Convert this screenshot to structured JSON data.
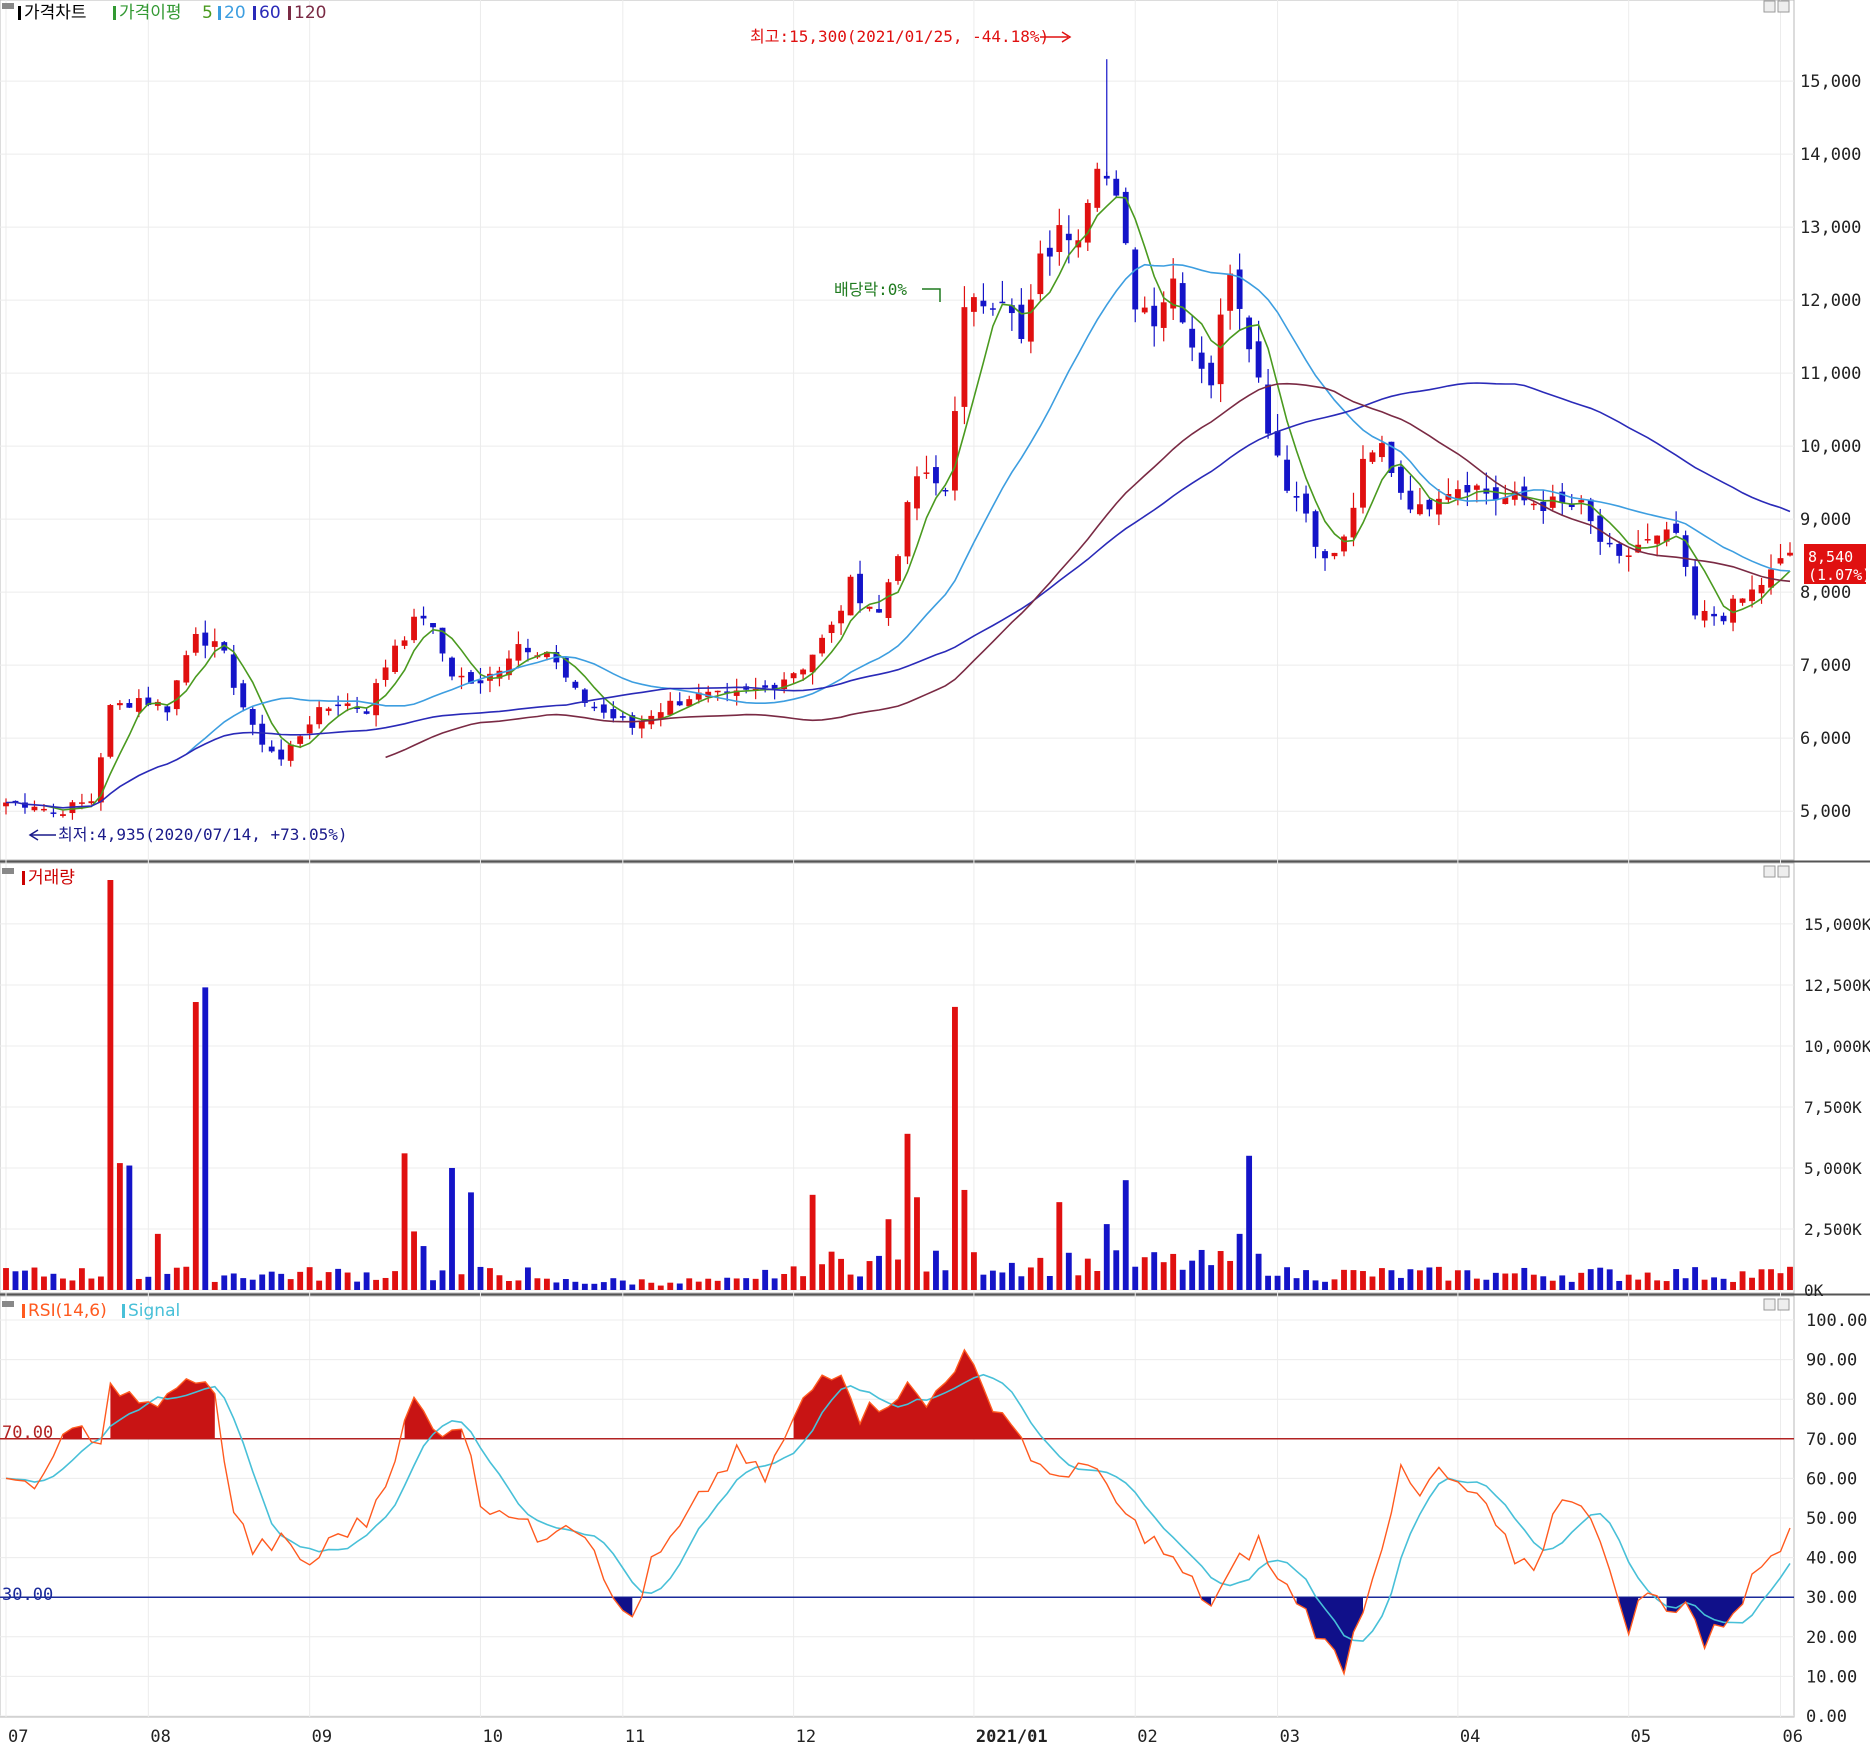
{
  "chart_data": [
    {
      "type": "candlestick",
      "panel": "price",
      "legend": [
        {
          "label": "가격차트",
          "color": "#000000"
        },
        {
          "label": "가격이평",
          "color": "#339933"
        },
        {
          "label": "5",
          "color": "#4a9a1f"
        },
        {
          "label": "20",
          "color": "#3d9ee0"
        },
        {
          "label": "60",
          "color": "#2a2ab8"
        },
        {
          "label": "120",
          "color": "#7a2a44"
        }
      ],
      "ylim": [
        4400,
        15700
      ],
      "y_ticks": [
        "15,000",
        "14,000",
        "13,000",
        "12,000",
        "11,000",
        "10,000",
        "9,000",
        "8,000",
        "7,000",
        "6,000",
        "5,000"
      ],
      "y_tick_values": [
        15000,
        14000,
        13000,
        12000,
        11000,
        10000,
        9000,
        8000,
        7000,
        6000,
        5000
      ],
      "last_price_label": "8,540",
      "last_change_label": "(1.07%)",
      "last_price": 8540,
      "annotations": {
        "high": "최고:15,300(2021/01/25, -44.18%)",
        "low": "최저:4,935(2020/07/14, +73.05%)",
        "dividend": "배당락:0%"
      },
      "high_value": 15300,
      "low_value": 4935,
      "anchors": [
        {
          "day": 0,
          "close": 5120
        },
        {
          "day": 3,
          "close": 5100
        },
        {
          "day": 5,
          "close": 4980
        },
        {
          "day": 9,
          "close": 5150
        },
        {
          "day": 11,
          "close": 6400
        },
        {
          "day": 14,
          "close": 6550
        },
        {
          "day": 17,
          "close": 6420
        },
        {
          "day": 20,
          "close": 7500
        },
        {
          "day": 23,
          "close": 7100
        },
        {
          "day": 26,
          "close": 6100
        },
        {
          "day": 29,
          "close": 5700
        },
        {
          "day": 32,
          "close": 6250
        },
        {
          "day": 35,
          "close": 6500
        },
        {
          "day": 38,
          "close": 6400
        },
        {
          "day": 41,
          "close": 7300
        },
        {
          "day": 44,
          "close": 7700
        },
        {
          "day": 47,
          "close": 6900
        },
        {
          "day": 50,
          "close": 6700
        },
        {
          "day": 54,
          "close": 7300
        },
        {
          "day": 57,
          "close": 7200
        },
        {
          "day": 60,
          "close": 6600
        },
        {
          "day": 63,
          "close": 6350
        },
        {
          "day": 66,
          "close": 6150
        },
        {
          "day": 68,
          "close": 6350
        },
        {
          "day": 72,
          "close": 6580
        },
        {
          "day": 76,
          "close": 6550
        },
        {
          "day": 80,
          "close": 6680
        },
        {
          "day": 84,
          "close": 7000
        },
        {
          "day": 87,
          "close": 7500
        },
        {
          "day": 89,
          "close": 8100
        },
        {
          "day": 92,
          "close": 7700
        },
        {
          "day": 94,
          "close": 8600
        },
        {
          "day": 96,
          "close": 9600
        },
        {
          "day": 99,
          "close": 9400
        },
        {
          "day": 101,
          "close": 11800
        },
        {
          "day": 103,
          "close": 12000
        },
        {
          "day": 105,
          "close": 12100
        },
        {
          "day": 107,
          "close": 11400
        },
        {
          "day": 109,
          "close": 12500
        },
        {
          "day": 111,
          "close": 12900
        },
        {
          "day": 113,
          "close": 13000
        },
        {
          "day": 115,
          "close": 14000
        },
        {
          "day": 117,
          "close": 13300
        },
        {
          "day": 119,
          "close": 12000
        },
        {
          "day": 121,
          "close": 11800
        },
        {
          "day": 123,
          "close": 12300
        },
        {
          "day": 125,
          "close": 11400
        },
        {
          "day": 127,
          "close": 10900
        },
        {
          "day": 129,
          "close": 12500
        },
        {
          "day": 131,
          "close": 11500
        },
        {
          "day": 133,
          "close": 10300
        },
        {
          "day": 135,
          "close": 9500
        },
        {
          "day": 137,
          "close": 9100
        },
        {
          "day": 139,
          "close": 8400
        },
        {
          "day": 141,
          "close": 8700
        },
        {
          "day": 143,
          "close": 9700
        },
        {
          "day": 145,
          "close": 10000
        },
        {
          "day": 147,
          "close": 9400
        },
        {
          "day": 149,
          "close": 9100
        },
        {
          "day": 151,
          "close": 9400
        },
        {
          "day": 154,
          "close": 9500
        },
        {
          "day": 157,
          "close": 9300
        },
        {
          "day": 160,
          "close": 9250
        },
        {
          "day": 163,
          "close": 9200
        },
        {
          "day": 166,
          "close": 9150
        },
        {
          "day": 168,
          "close": 8700
        },
        {
          "day": 170,
          "close": 8400
        },
        {
          "day": 172,
          "close": 8650
        },
        {
          "day": 174,
          "close": 8700
        },
        {
          "day": 176,
          "close": 8800
        },
        {
          "day": 178,
          "close": 7650
        },
        {
          "day": 181,
          "close": 7700
        },
        {
          "day": 184,
          "close": 8000
        },
        {
          "day": 186,
          "close": 8250
        },
        {
          "day": 188,
          "close": 8540
        }
      ]
    },
    {
      "type": "bar",
      "panel": "volume",
      "legend": [
        {
          "label": "거래량",
          "color": "#cc0000"
        }
      ],
      "ylim": [
        0,
        16800
      ],
      "y_ticks": [
        "15,000K",
        "12,500K",
        "10,000K",
        "7,500K",
        "5,000K",
        "2,500K",
        "0K"
      ],
      "y_tick_values": [
        15000,
        12500,
        10000,
        7500,
        5000,
        2500,
        0
      ],
      "spikes": [
        {
          "day": 11,
          "value": 16800
        },
        {
          "day": 12,
          "value": 5200
        },
        {
          "day": 13,
          "value": 5100
        },
        {
          "day": 16,
          "value": 2300
        },
        {
          "day": 20,
          "value": 11800
        },
        {
          "day": 21,
          "value": 12400
        },
        {
          "day": 42,
          "value": 5600
        },
        {
          "day": 43,
          "value": 2400
        },
        {
          "day": 44,
          "value": 1800
        },
        {
          "day": 47,
          "value": 5000
        },
        {
          "day": 49,
          "value": 4000
        },
        {
          "day": 85,
          "value": 3900
        },
        {
          "day": 93,
          "value": 2900
        },
        {
          "day": 95,
          "value": 6400
        },
        {
          "day": 96,
          "value": 3800
        },
        {
          "day": 100,
          "value": 11600
        },
        {
          "day": 101,
          "value": 4100
        },
        {
          "day": 111,
          "value": 3600
        },
        {
          "day": 116,
          "value": 2700
        },
        {
          "day": 118,
          "value": 4500
        },
        {
          "day": 131,
          "value": 5500
        },
        {
          "day": 130,
          "value": 2300
        },
        {
          "day": 70,
          "value": 300
        }
      ]
    },
    {
      "type": "line",
      "panel": "rsi",
      "legend": [
        {
          "label": "RSI(14,6)",
          "color": "#ff5a1f"
        },
        {
          "label": "Signal",
          "color": "#48c0d8"
        }
      ],
      "ylim": [
        0,
        100
      ],
      "y_ticks": [
        "100.00",
        "90.00",
        "80.00",
        "70.00",
        "60.00",
        "50.00",
        "40.00",
        "30.00",
        "20.00",
        "10.00",
        "0.00"
      ],
      "y_tick_values": [
        100,
        90,
        80,
        70,
        60,
        50,
        40,
        30,
        20,
        10,
        0
      ],
      "reference_levels": [
        {
          "label": "70.00",
          "value": 70,
          "color": "#b22222"
        },
        {
          "label": "30.00",
          "value": 30,
          "color": "#1a2a9a"
        }
      ],
      "rsi_anchors": [
        {
          "day": 0,
          "value": 62
        },
        {
          "day": 3,
          "value": 55
        },
        {
          "day": 5,
          "value": 68
        },
        {
          "day": 8,
          "value": 72
        },
        {
          "day": 10,
          "value": 70
        },
        {
          "day": 11,
          "value": 84
        },
        {
          "day": 14,
          "value": 78
        },
        {
          "day": 17,
          "value": 80
        },
        {
          "day": 20,
          "value": 86
        },
        {
          "day": 22,
          "value": 80
        },
        {
          "day": 24,
          "value": 52
        },
        {
          "day": 26,
          "value": 42
        },
        {
          "day": 29,
          "value": 44
        },
        {
          "day": 32,
          "value": 38
        },
        {
          "day": 35,
          "value": 46
        },
        {
          "day": 38,
          "value": 49
        },
        {
          "day": 41,
          "value": 66
        },
        {
          "day": 43,
          "value": 80
        },
        {
          "day": 45,
          "value": 72
        },
        {
          "day": 48,
          "value": 74
        },
        {
          "day": 50,
          "value": 54
        },
        {
          "day": 53,
          "value": 52
        },
        {
          "day": 56,
          "value": 45
        },
        {
          "day": 59,
          "value": 50
        },
        {
          "day": 62,
          "value": 44
        },
        {
          "day": 64,
          "value": 28
        },
        {
          "day": 66,
          "value": 25
        },
        {
          "day": 68,
          "value": 38
        },
        {
          "day": 71,
          "value": 47
        },
        {
          "day": 74,
          "value": 58
        },
        {
          "day": 77,
          "value": 66
        },
        {
          "day": 80,
          "value": 60
        },
        {
          "day": 84,
          "value": 79
        },
        {
          "day": 86,
          "value": 86
        },
        {
          "day": 88,
          "value": 88
        },
        {
          "day": 90,
          "value": 76
        },
        {
          "day": 93,
          "value": 80
        },
        {
          "day": 95,
          "value": 83
        },
        {
          "day": 97,
          "value": 78
        },
        {
          "day": 99,
          "value": 86
        },
        {
          "day": 101,
          "value": 91
        },
        {
          "day": 103,
          "value": 82
        },
        {
          "day": 106,
          "value": 74
        },
        {
          "day": 108,
          "value": 66
        },
        {
          "day": 110,
          "value": 59
        },
        {
          "day": 113,
          "value": 64
        },
        {
          "day": 116,
          "value": 58
        },
        {
          "day": 118,
          "value": 50
        },
        {
          "day": 121,
          "value": 44
        },
        {
          "day": 124,
          "value": 36
        },
        {
          "day": 127,
          "value": 28
        },
        {
          "day": 130,
          "value": 39
        },
        {
          "day": 132,
          "value": 44
        },
        {
          "day": 134,
          "value": 34
        },
        {
          "day": 136,
          "value": 30
        },
        {
          "day": 139,
          "value": 18
        },
        {
          "day": 141,
          "value": 13
        },
        {
          "day": 143,
          "value": 28
        },
        {
          "day": 145,
          "value": 44
        },
        {
          "day": 147,
          "value": 61
        },
        {
          "day": 149,
          "value": 55
        },
        {
          "day": 151,
          "value": 62
        },
        {
          "day": 153,
          "value": 57
        },
        {
          "day": 155,
          "value": 56
        },
        {
          "day": 157,
          "value": 47
        },
        {
          "day": 159,
          "value": 40
        },
        {
          "day": 161,
          "value": 38
        },
        {
          "day": 163,
          "value": 50
        },
        {
          "day": 165,
          "value": 56
        },
        {
          "day": 167,
          "value": 52
        },
        {
          "day": 169,
          "value": 35
        },
        {
          "day": 171,
          "value": 23
        },
        {
          "day": 173,
          "value": 32
        },
        {
          "day": 175,
          "value": 26
        },
        {
          "day": 177,
          "value": 30
        },
        {
          "day": 179,
          "value": 18
        },
        {
          "day": 181,
          "value": 24
        },
        {
          "day": 183,
          "value": 30
        },
        {
          "day": 185,
          "value": 38
        },
        {
          "day": 187,
          "value": 44
        },
        {
          "day": 188,
          "value": 49
        }
      ]
    }
  ],
  "x_axis": {
    "labels": [
      {
        "label": "07",
        "day": 0
      },
      {
        "label": "08",
        "day": 15
      },
      {
        "label": "09",
        "day": 32
      },
      {
        "label": "10",
        "day": 50
      },
      {
        "label": "11",
        "day": 65
      },
      {
        "label": "12",
        "day": 83
      },
      {
        "label": "2021/01",
        "day": 102,
        "bold": true
      },
      {
        "label": "02",
        "day": 119
      },
      {
        "label": "03",
        "day": 134
      },
      {
        "label": "04",
        "day": 153
      },
      {
        "label": "05",
        "day": 171
      },
      {
        "label": "06",
        "day": 187
      }
    ],
    "n_days": 189
  }
}
